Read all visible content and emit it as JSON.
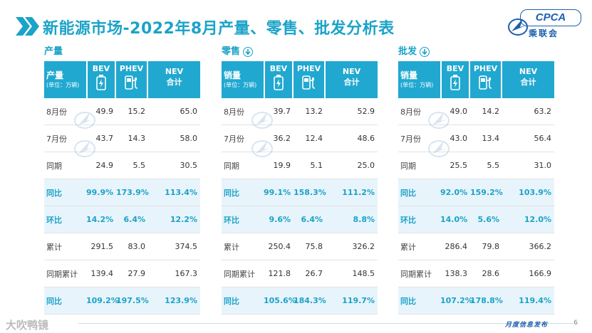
{
  "header": {
    "title": "新能源市场-2022年8月产量、零售、批发分析表",
    "logo_text": "CPCA",
    "logo_sub": "乘联会"
  },
  "columns": {
    "label_main": "产量",
    "label_unit": "(单位：万辆)",
    "bev": "BEV",
    "phev": "PHEV",
    "nev": "NEV",
    "nev_sub": "合计"
  },
  "panels": [
    {
      "title": "产量",
      "label_main": "产量",
      "rows": [
        {
          "label": "8月份",
          "bev": "49.9",
          "phev": "15.2",
          "nev": "65.0",
          "hl": false
        },
        {
          "label": "7月份",
          "bev": "43.7",
          "phev": "14.3",
          "nev": "58.0",
          "hl": false
        },
        {
          "label": "同期",
          "bev": "24.9",
          "phev": "5.5",
          "nev": "30.5",
          "hl": false
        },
        {
          "label": "同比",
          "bev": "99.9%",
          "phev": "173.9%",
          "nev": "113.4%",
          "hl": true
        },
        {
          "label": "环比",
          "bev": "14.2%",
          "phev": "6.4%",
          "nev": "12.2%",
          "hl": true
        },
        {
          "label": "累计",
          "bev": "291.5",
          "phev": "83.0",
          "nev": "374.5",
          "hl": false
        },
        {
          "label": "同期累计",
          "bev": "139.4",
          "phev": "27.9",
          "nev": "167.3",
          "hl": false
        },
        {
          "label": "同比",
          "bev": "109.2%",
          "phev": "197.5%",
          "nev": "123.9%",
          "hl": true
        }
      ]
    },
    {
      "title": "零售",
      "label_main": "销量",
      "rows": [
        {
          "label": "8月份",
          "bev": "39.7",
          "phev": "13.2",
          "nev": "52.9",
          "hl": false
        },
        {
          "label": "7月份",
          "bev": "36.2",
          "phev": "12.4",
          "nev": "48.6",
          "hl": false
        },
        {
          "label": "同期",
          "bev": "19.9",
          "phev": "5.1",
          "nev": "25.0",
          "hl": false
        },
        {
          "label": "同比",
          "bev": "99.1%",
          "phev": "158.3%",
          "nev": "111.2%",
          "hl": true
        },
        {
          "label": "环比",
          "bev": "9.6%",
          "phev": "6.4%",
          "nev": "8.8%",
          "hl": true
        },
        {
          "label": "累计",
          "bev": "250.4",
          "phev": "75.8",
          "nev": "326.2",
          "hl": false
        },
        {
          "label": "同期累计",
          "bev": "121.8",
          "phev": "26.7",
          "nev": "148.5",
          "hl": false
        },
        {
          "label": "同比",
          "bev": "105.6%",
          "phev": "184.3%",
          "nev": "119.7%",
          "hl": true
        }
      ]
    },
    {
      "title": "批发",
      "label_main": "销量",
      "rows": [
        {
          "label": "8月份",
          "bev": "49.0",
          "phev": "14.2",
          "nev": "63.2",
          "hl": false
        },
        {
          "label": "7月份",
          "bev": "43.0",
          "phev": "13.4",
          "nev": "56.4",
          "hl": false
        },
        {
          "label": "同期",
          "bev": "25.5",
          "phev": "5.5",
          "nev": "31.0",
          "hl": false
        },
        {
          "label": "同比",
          "bev": "92.0%",
          "phev": "159.2%",
          "nev": "103.9%",
          "hl": true
        },
        {
          "label": "环比",
          "bev": "14.0%",
          "phev": "5.6%",
          "nev": "12.0%",
          "hl": true
        },
        {
          "label": "累计",
          "bev": "286.4",
          "phev": "79.8",
          "nev": "366.2",
          "hl": false
        },
        {
          "label": "同期累计",
          "bev": "138.3",
          "phev": "28.6",
          "nev": "166.9",
          "hl": false
        },
        {
          "label": "同比",
          "bev": "107.2%",
          "phev": "178.8%",
          "nev": "119.4%",
          "hl": true
        }
      ]
    }
  ],
  "footer": {
    "left_text": "大吹鸭镜",
    "right_text": "月度信息发布",
    "page": "6"
  },
  "colors": {
    "accent": "#1ba3c8",
    "header_fill": "#21a8d0",
    "highlight_row": "#e8f4fb",
    "brand_blue": "#1c5fb0"
  },
  "icons": [
    "chevron-right-double-icon",
    "arrow-down-circle-icon",
    "battery-icon",
    "charging-plug-icon",
    "cpca-logo-icon",
    "cpca-watermark-icon"
  ]
}
